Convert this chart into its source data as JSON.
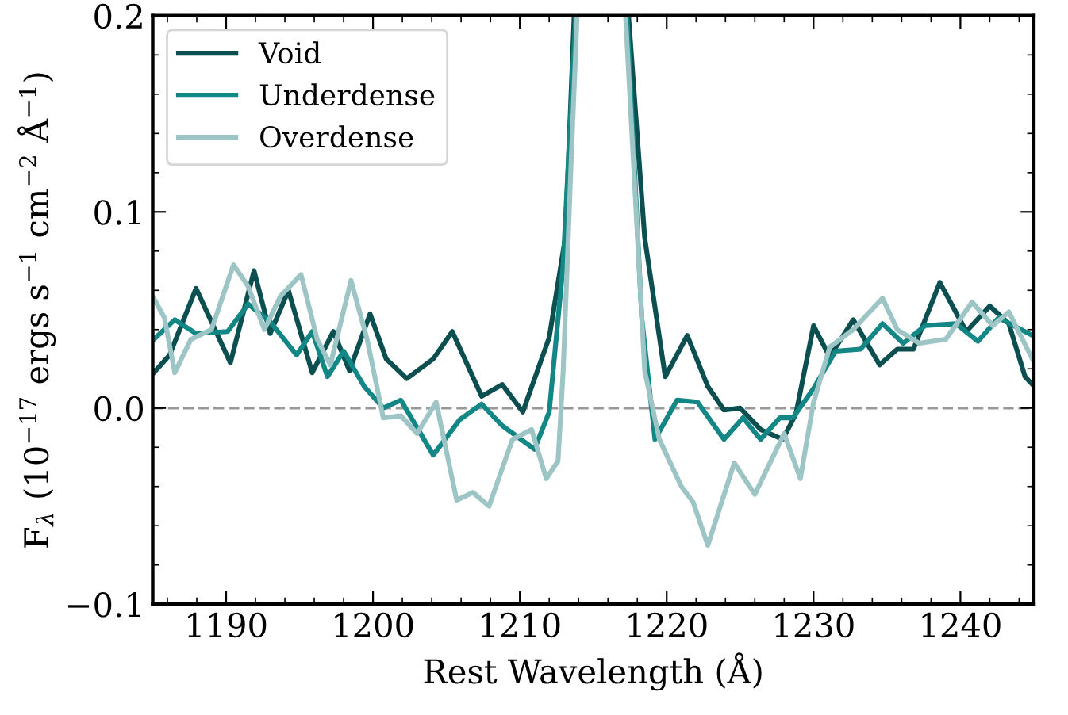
{
  "chart_data": {
    "type": "line",
    "xlabel": "Rest Wavelength (Å)",
    "ylabel": "F$_{λ}$ (10$^{−17}$ ergs s$^{−1}$ cm$^{−2}$ Å$^{−1}$)",
    "xlim": [
      1185,
      1245
    ],
    "xticks": [
      1190,
      1200,
      1210,
      1220,
      1230,
      1240
    ],
    "ylim": [
      -0.1,
      0.2
    ],
    "yticks": [
      {
        "value": -0.1,
        "label": "−0.1"
      },
      {
        "value": 0,
        "label": "0.0"
      },
      0.1,
      0.2
    ],
    "grid": false,
    "legend": "top left",
    "line_style": "solid",
    "marker": "none",
    "ref_lines": [
      {
        "axis": "y",
        "value": 0,
        "color": "#999999",
        "line_style": "dashed"
      }
    ],
    "series": [
      {
        "name": "Void",
        "color": "#0c4f50",
        "x": [
          1185.07,
          1186.15,
          1187.95,
          1190.29,
          1191.9,
          1193.0,
          1194.24,
          1195.86,
          1197.3,
          1198.4,
          1199.8,
          1200.9,
          1202.3,
          1204.1,
          1205.4,
          1207.4,
          1208.8,
          1210.2,
          1212.0,
          1213.1,
          1213.7,
          1215.5,
          1217.4,
          1218.5,
          1219.9,
          1221.4,
          1222.8,
          1223.9,
          1225.0,
          1226.4,
          1227.9,
          1228.8,
          1230.0,
          1231.1,
          1232.7,
          1234.5,
          1235.7,
          1236.8,
          1238.6,
          1240.4,
          1242.0,
          1243.3,
          1244.4,
          1244.9
        ],
        "values": [
          0.018,
          0.027,
          0.061,
          0.023,
          0.07,
          0.038,
          0.06,
          0.018,
          0.039,
          0.019,
          0.048,
          0.025,
          0.015,
          0.025,
          0.039,
          0.006,
          0.012,
          -0.002,
          0.036,
          0.087,
          0.2,
          null,
          0.2,
          0.087,
          0.016,
          0.037,
          0.011,
          -0.001,
          0.0,
          -0.011,
          -0.016,
          -0.003,
          0.042,
          0.026,
          0.045,
          0.022,
          0.03,
          0.03,
          0.064,
          0.039,
          0.052,
          0.043,
          0.016,
          0.012
        ]
      },
      {
        "name": "Underdense",
        "color": "#138686",
        "x": [
          1185.07,
          1186.5,
          1187.95,
          1190.1,
          1191.5,
          1193.0,
          1194.8,
          1195.86,
          1196.9,
          1198.0,
          1199.4,
          1200.7,
          1201.9,
          1204.1,
          1205.9,
          1207.4,
          1208.8,
          1211.0,
          1212.0,
          1212.95,
          1213.8,
          1215.5,
          1217.3,
          1218.3,
          1219.2,
          1220.7,
          1222.1,
          1223.9,
          1225.2,
          1226.4,
          1227.7,
          1228.6,
          1230.0,
          1231.5,
          1233.2,
          1234.7,
          1236.1,
          1237.6,
          1239.7,
          1241.2,
          1242.6,
          1244.9
        ],
        "values": [
          0.035,
          0.045,
          0.038,
          0.039,
          0.053,
          0.044,
          0.027,
          0.039,
          0.016,
          0.029,
          0.011,
          0.0,
          0.004,
          -0.024,
          -0.006,
          0.002,
          -0.009,
          -0.021,
          -0.002,
          0.073,
          0.2,
          null,
          0.2,
          0.046,
          -0.016,
          0.004,
          0.003,
          -0.016,
          -0.005,
          -0.016,
          -0.005,
          -0.005,
          0.01,
          0.029,
          0.03,
          0.043,
          0.033,
          0.042,
          0.043,
          0.034,
          0.046,
          0.037
        ]
      },
      {
        "name": "Overdense",
        "color": "#9dc5c5",
        "x": [
          1185.07,
          1185.8,
          1186.5,
          1187.6,
          1189.0,
          1190.5,
          1191.5,
          1192.6,
          1193.7,
          1195.1,
          1196.2,
          1197.1,
          1198.5,
          1199.6,
          1200.7,
          1201.9,
          1203.0,
          1204.3,
          1205.7,
          1206.8,
          1207.9,
          1209.5,
          1210.8,
          1211.8,
          1212.6,
          1212.95,
          1213.5,
          1213.9,
          1215.5,
          1217.2,
          1218.5,
          1219.5,
          1221.0,
          1221.8,
          1222.8,
          1224.6,
          1226.0,
          1228.0,
          1229.1,
          1230.0,
          1231.1,
          1232.7,
          1234.7,
          1235.7,
          1237.2,
          1239.0,
          1240.8,
          1242.2,
          1243.3,
          1244.9
        ],
        "values": [
          0.056,
          0.046,
          0.018,
          0.035,
          0.04,
          0.073,
          0.062,
          0.04,
          0.057,
          0.068,
          0.035,
          0.022,
          0.065,
          0.035,
          -0.005,
          -0.004,
          -0.013,
          0.003,
          -0.047,
          -0.043,
          -0.05,
          -0.016,
          -0.011,
          -0.036,
          -0.027,
          0.019,
          0.127,
          0.2,
          null,
          0.2,
          0.019,
          -0.016,
          -0.04,
          -0.048,
          -0.07,
          -0.028,
          -0.044,
          -0.013,
          -0.036,
          0.003,
          0.031,
          0.04,
          0.056,
          0.04,
          0.033,
          0.035,
          0.054,
          0.042,
          0.049,
          0.025
        ]
      }
    ]
  }
}
